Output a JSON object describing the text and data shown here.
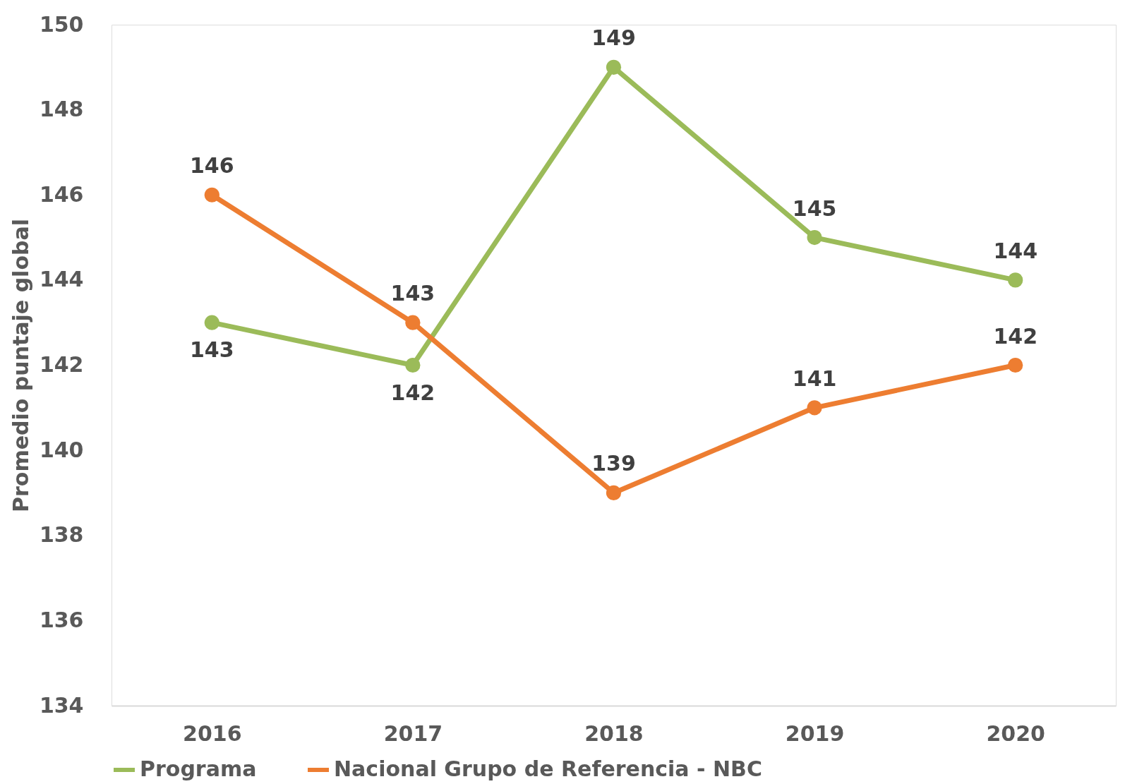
{
  "chart_data": {
    "type": "line",
    "ylabel": "Promedio puntaje global",
    "categories": [
      "2016",
      "2017",
      "2018",
      "2019",
      "2020"
    ],
    "series": [
      {
        "name": "Programa",
        "color": "#9bbb59",
        "values": [
          143,
          142,
          149,
          145,
          144
        ]
      },
      {
        "name": "Nacional Grupo de Referencia - NBC",
        "color": "#ed7d31",
        "values": [
          146,
          143,
          139,
          141,
          142
        ]
      }
    ],
    "ylim": [
      134,
      150
    ],
    "yticks": [
      134,
      136,
      138,
      140,
      142,
      144,
      146,
      148,
      150
    ],
    "grid": false,
    "legend": "bottom",
    "marker": "circle",
    "line_style": "solid",
    "data_labels": true
  }
}
